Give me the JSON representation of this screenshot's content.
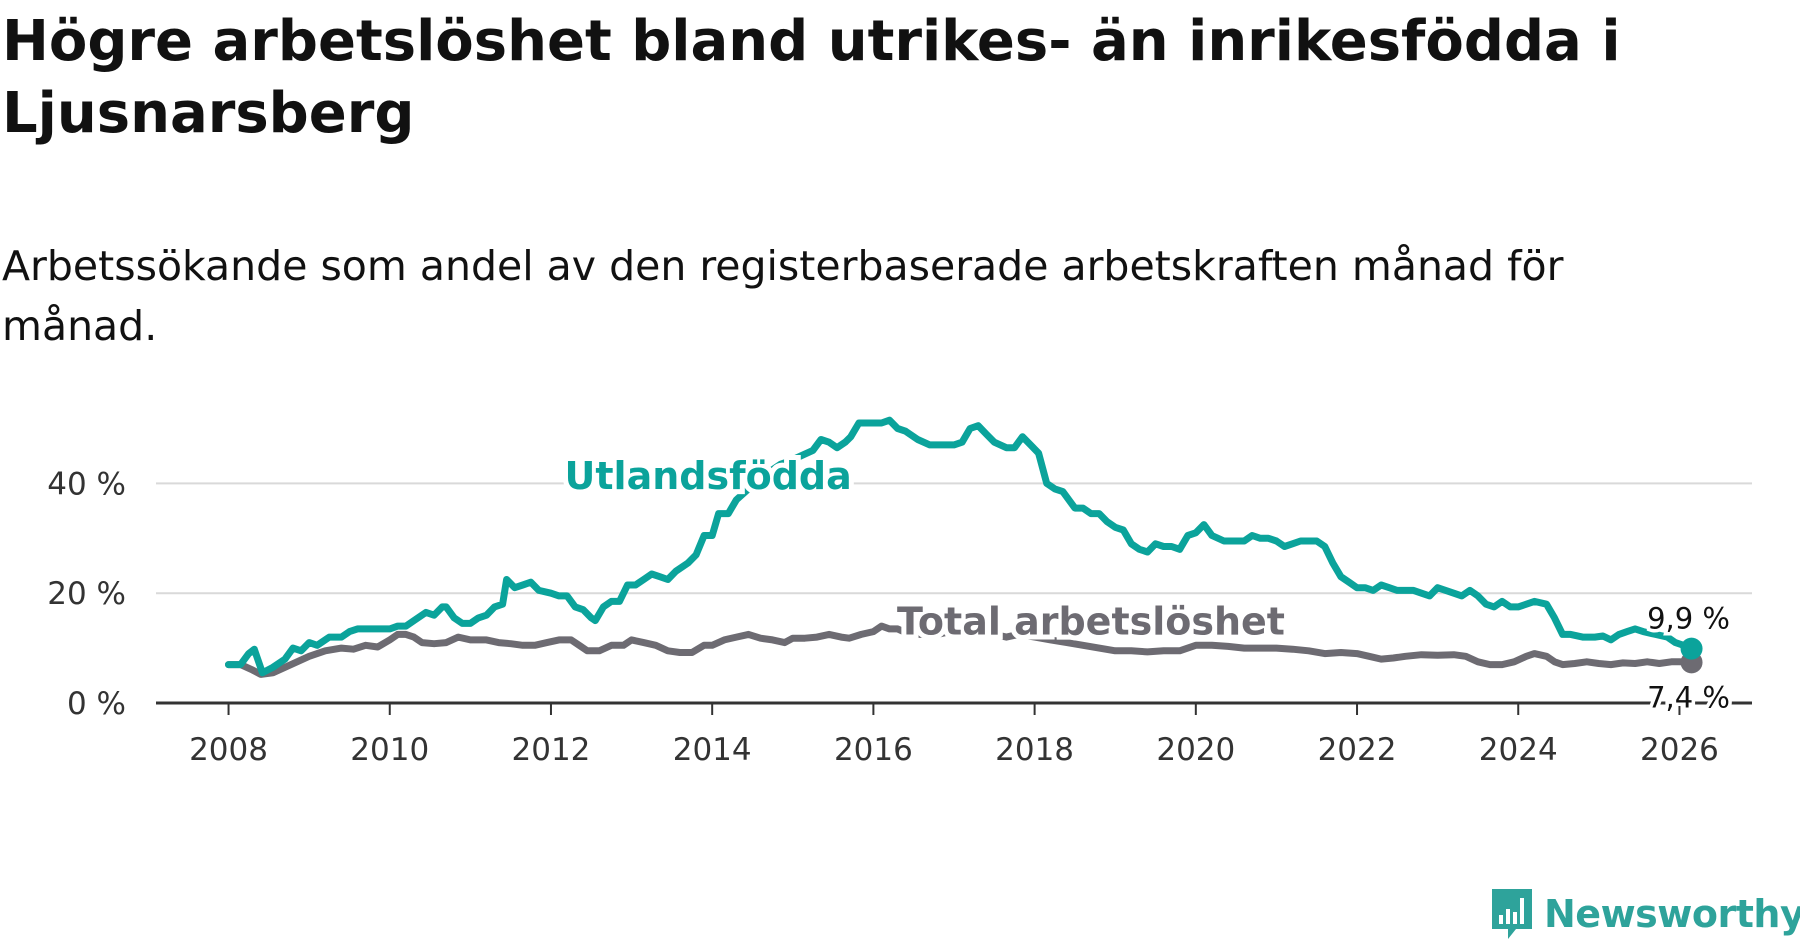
{
  "title": "Högre arbetslöshet bland utrikes- än inrikesfödda i Ljusnarsberg",
  "subtitle": "Arbetssökande som andel av den registerbaserade arbetskraften månad för månad.",
  "brand": "Newsworthy",
  "chart_data": {
    "type": "line",
    "title": "Högre arbetslöshet bland utrikes- än inrikesfödda i Ljusnarsberg",
    "subtitle": "Arbetssökande som andel av den registerbaserade arbetskraften månad för månad.",
    "xlabel": "",
    "ylabel": "",
    "xlim": [
      2007.1,
      2026.9
    ],
    "ylim": [
      0,
      53
    ],
    "x_ticks": [
      2008,
      2010,
      2012,
      2014,
      2016,
      2018,
      2020,
      2022,
      2024,
      2026
    ],
    "x_tick_labels": [
      "2008",
      "2010",
      "2012",
      "2014",
      "2016",
      "2018",
      "2020",
      "2022",
      "2024",
      "2026"
    ],
    "y_ticks": [
      0,
      20,
      40
    ],
    "y_tick_labels": [
      "0 %",
      "20 %",
      "40 %"
    ],
    "grid": true,
    "series": [
      {
        "name": "Utlandsfödda",
        "color": "#0ba39b",
        "end_label": "9,9 %",
        "points": [
          [
            2008.0,
            7
          ],
          [
            2008.15,
            7
          ],
          [
            2008.25,
            9
          ],
          [
            2008.32,
            9.8
          ],
          [
            2008.42,
            5.5
          ],
          [
            2008.55,
            6.5
          ],
          [
            2008.7,
            8
          ],
          [
            2008.8,
            10
          ],
          [
            2008.9,
            9.5
          ],
          [
            2009.0,
            11
          ],
          [
            2009.1,
            10.5
          ],
          [
            2009.25,
            12
          ],
          [
            2009.4,
            12
          ],
          [
            2009.5,
            13
          ],
          [
            2009.6,
            13.5
          ],
          [
            2009.75,
            13.5
          ],
          [
            2009.9,
            13.5
          ],
          [
            2010.0,
            13.5
          ],
          [
            2010.1,
            14
          ],
          [
            2010.2,
            14
          ],
          [
            2010.3,
            15
          ],
          [
            2010.45,
            16.5
          ],
          [
            2010.55,
            16
          ],
          [
            2010.65,
            17.5
          ],
          [
            2010.7,
            17.5
          ],
          [
            2010.8,
            15.5
          ],
          [
            2010.9,
            14.5
          ],
          [
            2011.0,
            14.5
          ],
          [
            2011.1,
            15.5
          ],
          [
            2011.2,
            16
          ],
          [
            2011.3,
            17.5
          ],
          [
            2011.4,
            18
          ],
          [
            2011.45,
            22.5
          ],
          [
            2011.55,
            21
          ],
          [
            2011.65,
            21.5
          ],
          [
            2011.75,
            22
          ],
          [
            2011.85,
            20.5
          ],
          [
            2012.0,
            20
          ],
          [
            2012.1,
            19.5
          ],
          [
            2012.2,
            19.5
          ],
          [
            2012.3,
            17.5
          ],
          [
            2012.4,
            17
          ],
          [
            2012.5,
            15.5
          ],
          [
            2012.55,
            15
          ],
          [
            2012.65,
            17.5
          ],
          [
            2012.75,
            18.5
          ],
          [
            2012.85,
            18.5
          ],
          [
            2012.95,
            21.5
          ],
          [
            2013.05,
            21.5
          ],
          [
            2013.15,
            22.5
          ],
          [
            2013.25,
            23.5
          ],
          [
            2013.35,
            23
          ],
          [
            2013.45,
            22.5
          ],
          [
            2013.55,
            24
          ],
          [
            2013.7,
            25.5
          ],
          [
            2013.8,
            27
          ],
          [
            2013.9,
            30.5
          ],
          [
            2014.0,
            30.5
          ],
          [
            2014.08,
            34.5
          ],
          [
            2014.2,
            34.5
          ],
          [
            2014.3,
            37
          ],
          [
            2014.45,
            39
          ],
          [
            2014.6,
            40
          ],
          [
            2014.75,
            42.5
          ],
          [
            2014.85,
            43.5
          ],
          [
            2014.95,
            44
          ],
          [
            2015.1,
            45
          ],
          [
            2015.25,
            46
          ],
          [
            2015.35,
            48
          ],
          [
            2015.45,
            47.5
          ],
          [
            2015.55,
            46.5
          ],
          [
            2015.65,
            47.5
          ],
          [
            2015.72,
            48.5
          ],
          [
            2015.82,
            51
          ],
          [
            2015.95,
            51
          ],
          [
            2016.1,
            51
          ],
          [
            2016.2,
            51.5
          ],
          [
            2016.3,
            50
          ],
          [
            2016.4,
            49.5
          ],
          [
            2016.55,
            48
          ],
          [
            2016.7,
            47
          ],
          [
            2016.85,
            47
          ],
          [
            2017.0,
            47
          ],
          [
            2017.1,
            47.5
          ],
          [
            2017.2,
            50
          ],
          [
            2017.3,
            50.5
          ],
          [
            2017.4,
            49
          ],
          [
            2017.5,
            47.5
          ],
          [
            2017.65,
            46.5
          ],
          [
            2017.75,
            46.5
          ],
          [
            2017.85,
            48.5
          ],
          [
            2017.95,
            47
          ],
          [
            2018.05,
            45.5
          ],
          [
            2018.15,
            40
          ],
          [
            2018.25,
            39
          ],
          [
            2018.35,
            38.5
          ],
          [
            2018.5,
            35.5
          ],
          [
            2018.6,
            35.5
          ],
          [
            2018.7,
            34.5
          ],
          [
            2018.8,
            34.5
          ],
          [
            2018.9,
            33
          ],
          [
            2019.0,
            32
          ],
          [
            2019.1,
            31.5
          ],
          [
            2019.2,
            29
          ],
          [
            2019.3,
            28
          ],
          [
            2019.4,
            27.5
          ],
          [
            2019.5,
            29
          ],
          [
            2019.6,
            28.5
          ],
          [
            2019.7,
            28.5
          ],
          [
            2019.8,
            28
          ],
          [
            2019.9,
            30.5
          ],
          [
            2020.0,
            31
          ],
          [
            2020.1,
            32.5
          ],
          [
            2020.2,
            30.5
          ],
          [
            2020.35,
            29.5
          ],
          [
            2020.5,
            29.5
          ],
          [
            2020.6,
            29.5
          ],
          [
            2020.7,
            30.5
          ],
          [
            2020.8,
            30
          ],
          [
            2020.9,
            30
          ],
          [
            2021.0,
            29.5
          ],
          [
            2021.1,
            28.5
          ],
          [
            2021.2,
            29
          ],
          [
            2021.3,
            29.5
          ],
          [
            2021.4,
            29.5
          ],
          [
            2021.5,
            29.5
          ],
          [
            2021.6,
            28.5
          ],
          [
            2021.7,
            25.5
          ],
          [
            2021.8,
            23
          ],
          [
            2021.9,
            22
          ],
          [
            2022.0,
            21
          ],
          [
            2022.1,
            21
          ],
          [
            2022.2,
            20.5
          ],
          [
            2022.3,
            21.5
          ],
          [
            2022.4,
            21
          ],
          [
            2022.5,
            20.5
          ],
          [
            2022.6,
            20.5
          ],
          [
            2022.7,
            20.5
          ],
          [
            2022.8,
            20
          ],
          [
            2022.9,
            19.5
          ],
          [
            2023.0,
            21
          ],
          [
            2023.1,
            20.5
          ],
          [
            2023.2,
            20
          ],
          [
            2023.3,
            19.5
          ],
          [
            2023.4,
            20.5
          ],
          [
            2023.5,
            19.5
          ],
          [
            2023.6,
            18
          ],
          [
            2023.7,
            17.5
          ],
          [
            2023.8,
            18.5
          ],
          [
            2023.9,
            17.5
          ],
          [
            2024.0,
            17.5
          ],
          [
            2024.1,
            18
          ],
          [
            2024.2,
            18.5
          ],
          [
            2024.35,
            18
          ],
          [
            2024.45,
            15.5
          ],
          [
            2024.55,
            12.5
          ],
          [
            2024.65,
            12.5
          ],
          [
            2024.8,
            12
          ],
          [
            2024.95,
            12
          ],
          [
            2025.05,
            12.2
          ],
          [
            2025.15,
            11.5
          ],
          [
            2025.25,
            12.5
          ],
          [
            2025.35,
            13
          ],
          [
            2025.45,
            13.5
          ],
          [
            2025.55,
            13
          ],
          [
            2025.7,
            12.5
          ],
          [
            2025.85,
            12
          ],
          [
            2025.95,
            11
          ],
          [
            2026.05,
            10.5
          ],
          [
            2026.1,
            10.5
          ],
          [
            2026.15,
            9.9
          ]
        ]
      },
      {
        "name": "Total arbetslöshet",
        "color": "#6d6b72",
        "end_label": "7,4 %",
        "points": [
          [
            2008.0,
            7
          ],
          [
            2008.15,
            7
          ],
          [
            2008.3,
            6
          ],
          [
            2008.4,
            5.2
          ],
          [
            2008.55,
            5.5
          ],
          [
            2008.7,
            6.5
          ],
          [
            2008.85,
            7.5
          ],
          [
            2009.0,
            8.5
          ],
          [
            2009.2,
            9.5
          ],
          [
            2009.4,
            10
          ],
          [
            2009.55,
            9.8
          ],
          [
            2009.7,
            10.5
          ],
          [
            2009.85,
            10.2
          ],
          [
            2010.0,
            11.5
          ],
          [
            2010.1,
            12.5
          ],
          [
            2010.2,
            12.5
          ],
          [
            2010.3,
            12
          ],
          [
            2010.4,
            11
          ],
          [
            2010.55,
            10.8
          ],
          [
            2010.7,
            11
          ],
          [
            2010.85,
            12
          ],
          [
            2011.0,
            11.5
          ],
          [
            2011.2,
            11.5
          ],
          [
            2011.35,
            11
          ],
          [
            2011.5,
            10.8
          ],
          [
            2011.65,
            10.5
          ],
          [
            2011.8,
            10.5
          ],
          [
            2011.95,
            11
          ],
          [
            2012.1,
            11.5
          ],
          [
            2012.25,
            11.5
          ],
          [
            2012.35,
            10.5
          ],
          [
            2012.45,
            9.5
          ],
          [
            2012.6,
            9.5
          ],
          [
            2012.75,
            10.5
          ],
          [
            2012.9,
            10.5
          ],
          [
            2013.0,
            11.5
          ],
          [
            2013.15,
            11
          ],
          [
            2013.3,
            10.5
          ],
          [
            2013.45,
            9.5
          ],
          [
            2013.6,
            9.2
          ],
          [
            2013.75,
            9.2
          ],
          [
            2013.9,
            10.5
          ],
          [
            2014.0,
            10.5
          ],
          [
            2014.15,
            11.5
          ],
          [
            2014.3,
            12
          ],
          [
            2014.45,
            12.5
          ],
          [
            2014.6,
            11.8
          ],
          [
            2014.75,
            11.5
          ],
          [
            2014.9,
            11
          ],
          [
            2015.0,
            11.8
          ],
          [
            2015.15,
            11.8
          ],
          [
            2015.3,
            12
          ],
          [
            2015.45,
            12.5
          ],
          [
            2015.6,
            12
          ],
          [
            2015.7,
            11.8
          ],
          [
            2015.85,
            12.5
          ],
          [
            2016.0,
            13
          ],
          [
            2016.1,
            14
          ],
          [
            2016.2,
            13.5
          ],
          [
            2016.3,
            13.5
          ],
          [
            2016.45,
            12.5
          ],
          [
            2016.6,
            12.5
          ],
          [
            2016.8,
            12.5
          ],
          [
            2016.95,
            13
          ],
          [
            2017.1,
            13.5
          ],
          [
            2017.2,
            14
          ],
          [
            2017.35,
            13.5
          ],
          [
            2017.5,
            12.5
          ],
          [
            2017.65,
            12
          ],
          [
            2017.8,
            12.5
          ],
          [
            2018.0,
            12
          ],
          [
            2018.2,
            11.5
          ],
          [
            2018.4,
            11
          ],
          [
            2018.6,
            10.5
          ],
          [
            2018.8,
            10
          ],
          [
            2019.0,
            9.5
          ],
          [
            2019.2,
            9.5
          ],
          [
            2019.4,
            9.3
          ],
          [
            2019.6,
            9.5
          ],
          [
            2019.8,
            9.5
          ],
          [
            2020.0,
            10.5
          ],
          [
            2020.2,
            10.5
          ],
          [
            2020.4,
            10.3
          ],
          [
            2020.6,
            10
          ],
          [
            2020.8,
            10
          ],
          [
            2021.0,
            10
          ],
          [
            2021.2,
            9.8
          ],
          [
            2021.4,
            9.5
          ],
          [
            2021.6,
            9
          ],
          [
            2021.8,
            9.2
          ],
          [
            2022.0,
            9
          ],
          [
            2022.15,
            8.5
          ],
          [
            2022.3,
            8
          ],
          [
            2022.45,
            8.2
          ],
          [
            2022.6,
            8.5
          ],
          [
            2022.8,
            8.8
          ],
          [
            2023.0,
            8.7
          ],
          [
            2023.2,
            8.8
          ],
          [
            2023.35,
            8.5
          ],
          [
            2023.5,
            7.5
          ],
          [
            2023.65,
            7
          ],
          [
            2023.8,
            7
          ],
          [
            2023.95,
            7.5
          ],
          [
            2024.1,
            8.5
          ],
          [
            2024.2,
            9
          ],
          [
            2024.35,
            8.5
          ],
          [
            2024.45,
            7.5
          ],
          [
            2024.55,
            7
          ],
          [
            2024.7,
            7.2
          ],
          [
            2024.85,
            7.5
          ],
          [
            2025.0,
            7.2
          ],
          [
            2025.15,
            7
          ],
          [
            2025.3,
            7.3
          ],
          [
            2025.45,
            7.2
          ],
          [
            2025.6,
            7.5
          ],
          [
            2025.75,
            7.2
          ],
          [
            2025.9,
            7.5
          ],
          [
            2026.0,
            7.5
          ],
          [
            2026.15,
            7.4
          ]
        ]
      }
    ],
    "annotations": [
      {
        "text": "Utlandsfödda",
        "series": "Utlandsfödda"
      },
      {
        "text": "Total arbetslöshet",
        "series": "Total arbetslöshet"
      }
    ]
  }
}
